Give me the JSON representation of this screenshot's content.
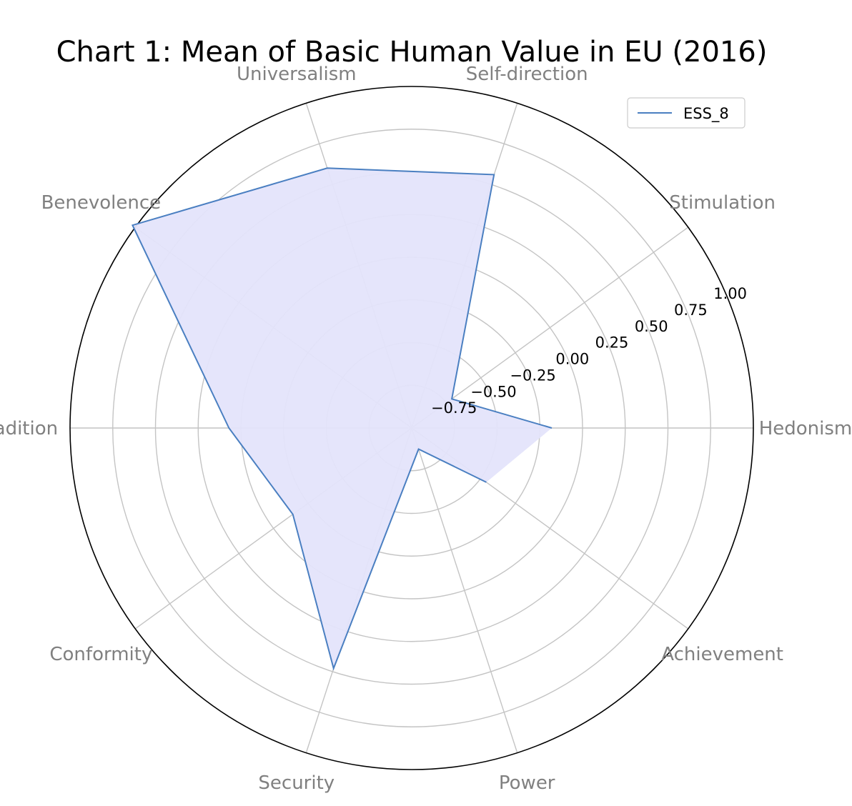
{
  "chart_data": {
    "type": "radar",
    "title": "Chart 1: Mean of Basic Human Value in EU (2016)",
    "categories": [
      "Hedonism",
      "Stimulation",
      "Self-direction",
      "Universalism",
      "Benevolence",
      "Tradition",
      "Conformity",
      "Security",
      "Power",
      "Achievement"
    ],
    "series": [
      {
        "name": "ESS_8",
        "values": [
          -0.18,
          -0.71,
          0.56,
          0.6,
          1.02,
          0.07,
          -0.14,
          0.48,
          -0.87,
          -0.46
        ],
        "line_color": "#4a7fc1",
        "fill_color": "#e4e4fb"
      }
    ],
    "r_range": [
      -1.0,
      1.0
    ],
    "r_ticks": [
      "−0.75",
      "−0.50",
      "−0.25",
      "0.00",
      "0.25",
      "0.50",
      "0.75",
      "1.00"
    ],
    "grid": true,
    "legend_position": "top-right"
  }
}
